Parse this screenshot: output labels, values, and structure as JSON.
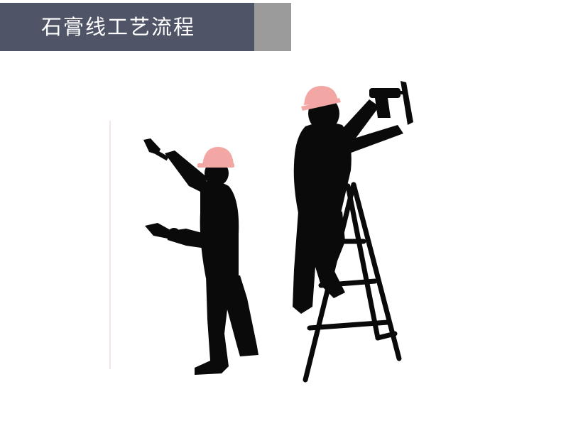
{
  "header": {
    "title": "石膏线工艺流程"
  },
  "illustration": {
    "subject": "two-workers-silhouette",
    "colors": {
      "silhouette": "#0a0a0a",
      "helmet": "#f2a7a5",
      "header_bg": "#4f5466",
      "header_accent": "#9b9b9b",
      "title_text": "#ffffff"
    }
  }
}
